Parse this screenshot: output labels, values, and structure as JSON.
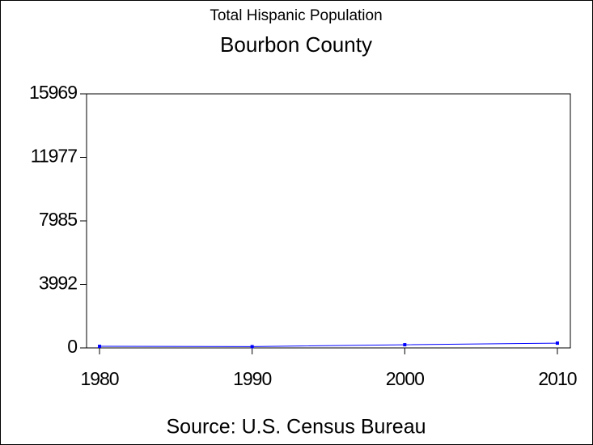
{
  "chart_data": {
    "type": "line",
    "title": "Total Hispanic Population",
    "subtitle": "Bourbon County",
    "source": "Source: U.S. Census Bureau",
    "x": [
      1980,
      1990,
      2000,
      2010
    ],
    "series": [
      {
        "name": "Hispanic Population",
        "color": "#0000ff",
        "values": [
          100,
          80,
          200,
          300
        ]
      }
    ],
    "xlim": [
      1979.15,
      2010.85
    ],
    "xticks": [
      1980,
      1990,
      2000,
      2010
    ],
    "ylim": [
      0,
      15969
    ],
    "yticks": [
      0,
      3992,
      7985,
      11977,
      15969
    ],
    "grid": false
  }
}
